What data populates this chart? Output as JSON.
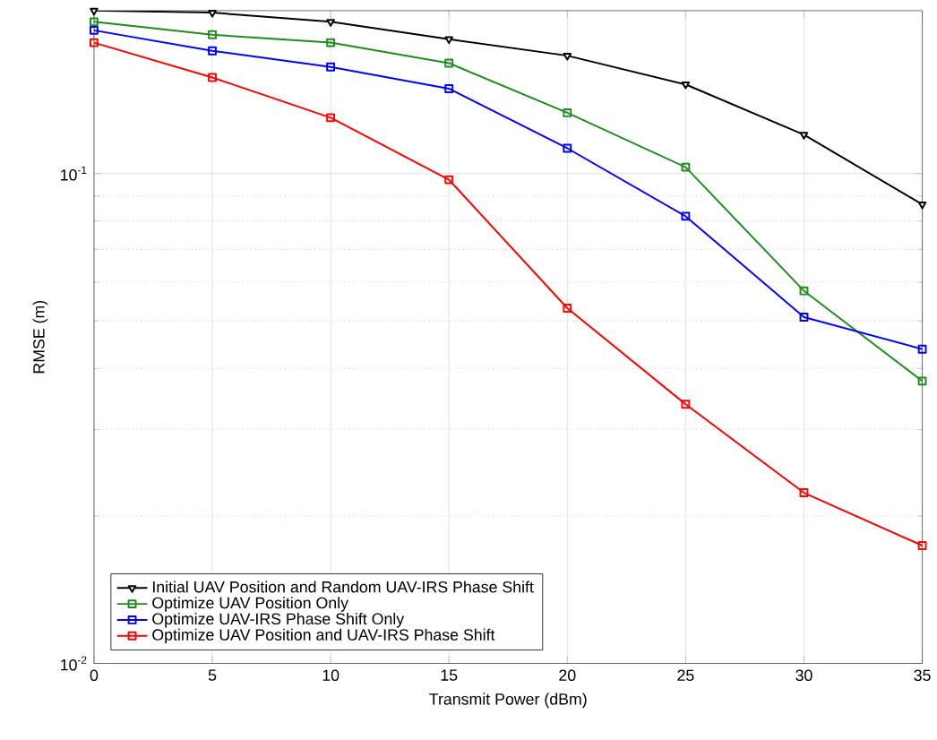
{
  "chart_data": {
    "type": "line",
    "xlabel": "Transmit Power (dBm)",
    "ylabel": "RMSE (m)",
    "log": "y",
    "grid": true,
    "legend": "bottom left",
    "x": [
      0,
      5,
      10,
      15,
      20,
      25,
      30,
      35
    ],
    "xlim": [
      0,
      35
    ],
    "xticks": [
      0,
      5,
      10,
      15,
      20,
      25,
      30,
      35
    ],
    "ylim": [
      0.01,
      0.215
    ],
    "yticks": [
      {
        "value": 0.01,
        "label": "10$^{-2}$"
      },
      {
        "value": 0.1,
        "label": "10$^{-1}$"
      }
    ],
    "series": [
      {
        "name": "Initial UAV Position and Random UAV-IRS Phase Shift",
        "color": "#000000",
        "marker": "triangle",
        "values": [
          0.215,
          0.213,
          0.204,
          0.188,
          0.174,
          0.152,
          0.12,
          0.0865
        ]
      },
      {
        "name": "Optimize UAV Position Only",
        "color": "#1f8c1f",
        "marker": "square",
        "values": [
          0.204,
          0.192,
          0.185,
          0.168,
          0.133,
          0.103,
          0.0576,
          0.0377
        ]
      },
      {
        "name": "Optimize UAV-IRS Phase Shift Only",
        "color": "#0000ff",
        "marker": "square",
        "values": [
          0.196,
          0.178,
          0.165,
          0.149,
          0.1126,
          0.0818,
          0.0509,
          0.0438
        ]
      },
      {
        "name": "Optimize UAV Position and UAV-IRS Phase Shift",
        "color": "#ff0000",
        "marker": "square",
        "values": [
          0.185,
          0.157,
          0.13,
          0.0971,
          0.0531,
          0.0338,
          0.0223,
          0.0174
        ]
      }
    ]
  }
}
